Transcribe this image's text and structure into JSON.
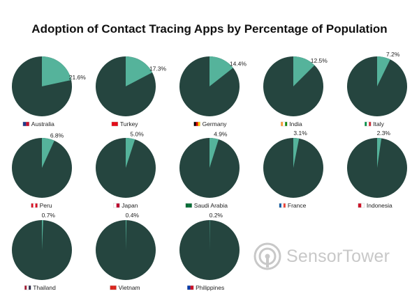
{
  "chart_data": {
    "type": "pie",
    "title": "Adoption of Contact Tracing Apps by Percentage of Population",
    "colors": {
      "adopted": "#55b39b",
      "remaining": "#25453f"
    },
    "pies": [
      {
        "country": "Australia",
        "value": 21.6,
        "label": "21.6%",
        "flag": [
          "#1f3a8a",
          "#c8102e"
        ]
      },
      {
        "country": "Turkey",
        "value": 17.3,
        "label": "17.3%",
        "flag": [
          "#e30a17",
          "#e30a17"
        ]
      },
      {
        "country": "Germany",
        "value": 14.4,
        "label": "14.4%",
        "flag": [
          "#000000",
          "#dd0000",
          "#ffce00"
        ]
      },
      {
        "country": "India",
        "value": 12.5,
        "label": "12.5%",
        "flag": [
          "#ff9933",
          "#ffffff",
          "#138808"
        ]
      },
      {
        "country": "Italy",
        "value": 7.2,
        "label": "7.2%",
        "flag": [
          "#009246",
          "#ffffff",
          "#ce2b37"
        ]
      },
      {
        "country": "Peru",
        "value": 6.8,
        "label": "6.8%",
        "flag": [
          "#d91023",
          "#ffffff",
          "#d91023"
        ]
      },
      {
        "country": "Japan",
        "value": 5.0,
        "label": "5.0%",
        "flag": [
          "#ffffff",
          "#bc002d"
        ]
      },
      {
        "country": "Saudi Arabia",
        "value": 4.9,
        "label": "4.9%",
        "flag": [
          "#006c35",
          "#006c35"
        ]
      },
      {
        "country": "France",
        "value": 3.1,
        "label": "3.1%",
        "flag": [
          "#0055a4",
          "#ffffff",
          "#ef4135"
        ]
      },
      {
        "country": "Indonesia",
        "value": 2.3,
        "label": "2.3%",
        "flag": [
          "#ce1126",
          "#ffffff"
        ]
      },
      {
        "country": "Thailand",
        "value": 0.7,
        "label": "0.7%",
        "flag": [
          "#a51931",
          "#f4f5f8",
          "#2d2a4a"
        ]
      },
      {
        "country": "Vietnam",
        "value": 0.4,
        "label": "0.4%",
        "flag": [
          "#da251d",
          "#da251d"
        ]
      },
      {
        "country": "Philippines",
        "value": 0.2,
        "label": "0.2%",
        "flag": [
          "#0038a8",
          "#ce1126"
        ]
      }
    ]
  },
  "watermark": {
    "text": "SensorTower",
    "icon": "sensor-tower-logo-icon"
  }
}
